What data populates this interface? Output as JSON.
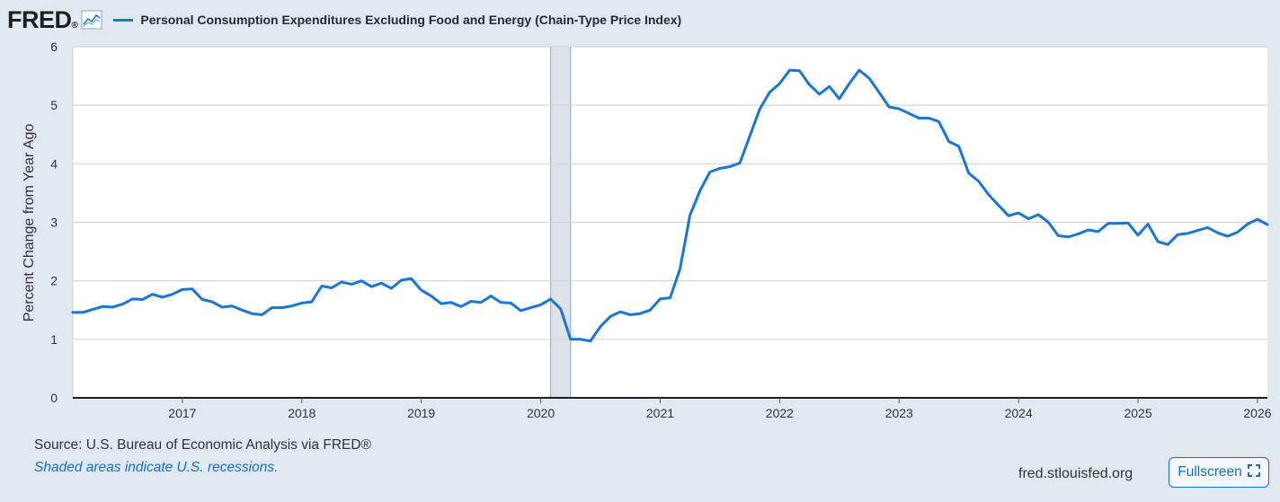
{
  "header": {
    "logo_text": "FRED",
    "logo_mark": "®",
    "graph_icon": "line-graph-icon",
    "series_title": "Personal Consumption Expenditures Excluding Food and Energy (Chain-Type Price Index)"
  },
  "footer": {
    "source": "Source: U.S. Bureau of Economic Analysis via FRED®",
    "recession_note": "Shaded areas indicate U.S. recessions.",
    "site": "fred.stlouisfed.org",
    "fullscreen_label": "Fullscreen",
    "fullscreen_icon": "expand-icon"
  },
  "colors": {
    "line": "#1877d6",
    "recession": "#dde3e9",
    "grid": "#cfcfcf",
    "background": "#e1e9f0",
    "plot_background": "#ffffff"
  },
  "chart_data": {
    "type": "line",
    "title": "Personal Consumption Expenditures Excluding Food and Energy (Chain-Type Price Index)",
    "xlabel": "",
    "ylabel": "Percent Change from Year Ago",
    "xlim": [
      2016.083,
      2026.083
    ],
    "ylim": [
      0,
      6
    ],
    "yticks": [
      0,
      1,
      2,
      3,
      4,
      5,
      6
    ],
    "xticks": [
      2017,
      2018,
      2019,
      2020,
      2021,
      2022,
      2023,
      2024,
      2025,
      2026
    ],
    "grid": true,
    "recessions": [
      {
        "start": 2020.083,
        "end": 2020.25
      }
    ],
    "series": [
      {
        "name": "Personal Consumption Expenditures Excluding Food and Energy (Chain-Type Price Index)",
        "start": 2016.083,
        "step": 0.08333,
        "values": [
          1.46,
          1.46,
          1.51,
          1.56,
          1.55,
          1.6,
          1.69,
          1.68,
          1.77,
          1.72,
          1.77,
          1.85,
          1.86,
          1.68,
          1.64,
          1.55,
          1.57,
          1.5,
          1.44,
          1.42,
          1.54,
          1.54,
          1.57,
          1.62,
          1.64,
          1.91,
          1.88,
          1.98,
          1.94,
          2.0,
          1.9,
          1.96,
          1.87,
          2.01,
          2.04,
          1.84,
          1.74,
          1.61,
          1.63,
          1.56,
          1.65,
          1.63,
          1.74,
          1.63,
          1.62,
          1.49,
          1.54,
          1.59,
          1.69,
          1.52,
          1.0,
          1.0,
          0.97,
          1.22,
          1.39,
          1.47,
          1.42,
          1.44,
          1.5,
          1.69,
          1.71,
          2.2,
          3.12,
          3.54,
          3.86,
          3.92,
          3.95,
          4.01,
          4.47,
          4.93,
          5.22,
          5.37,
          5.6,
          5.59,
          5.35,
          5.19,
          5.32,
          5.11,
          5.37,
          5.6,
          5.46,
          5.22,
          4.97,
          4.94,
          4.86,
          4.78,
          4.78,
          4.72,
          4.38,
          4.3,
          3.84,
          3.7,
          3.47,
          3.29,
          3.11,
          3.16,
          3.06,
          3.13,
          3.0,
          2.77,
          2.75,
          2.8,
          2.87,
          2.84,
          2.98,
          2.98,
          2.99,
          2.78,
          2.97,
          2.67,
          2.62,
          2.79,
          2.81,
          2.86,
          2.91,
          2.82,
          2.76,
          2.83,
          2.97,
          3.05,
          2.96
        ]
      }
    ]
  }
}
